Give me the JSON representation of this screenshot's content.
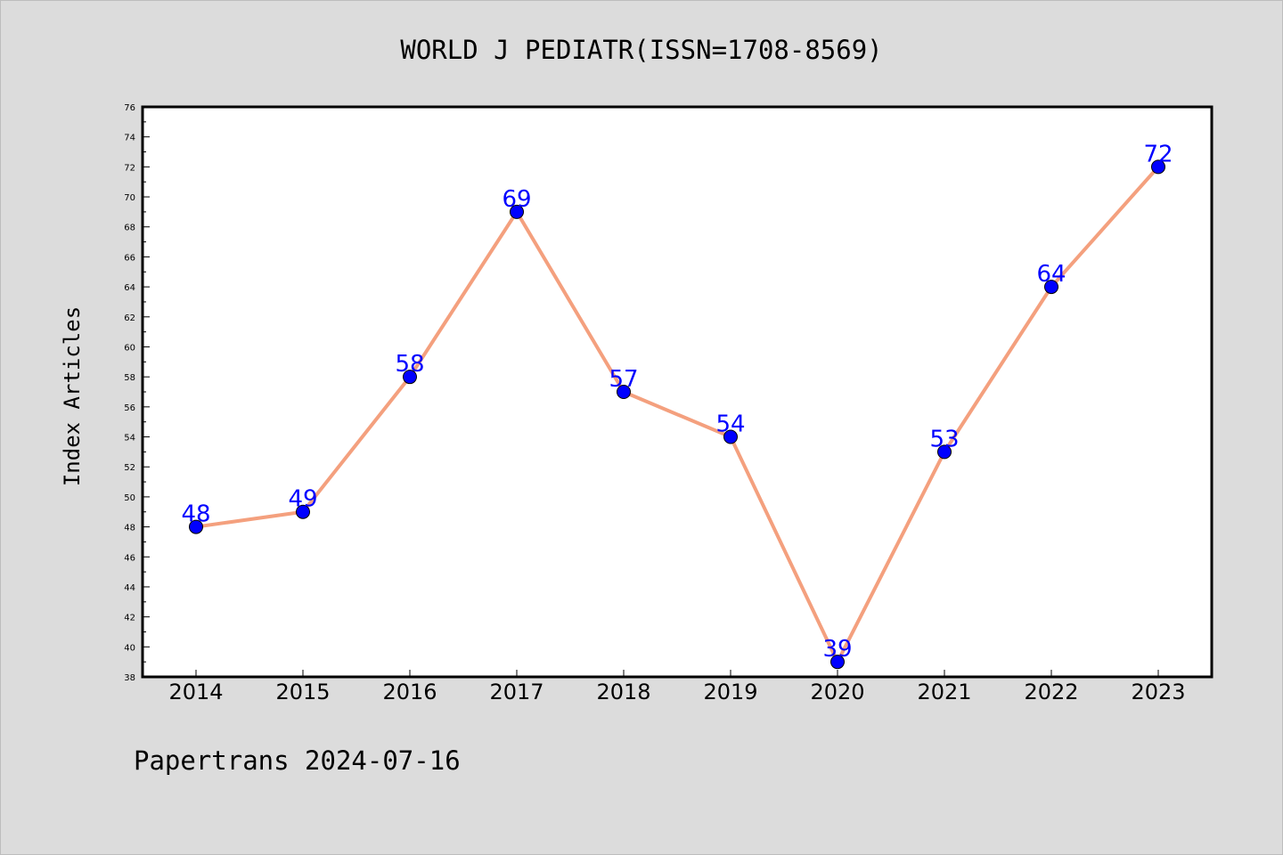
{
  "chart_data": {
    "type": "line",
    "title": "WORLD J PEDIATR(ISSN=1708-8569)",
    "xlabel": "",
    "ylabel": "Index Articles",
    "categories": [
      "2014",
      "2015",
      "2016",
      "2017",
      "2018",
      "2019",
      "2020",
      "2021",
      "2022",
      "2023"
    ],
    "series": [
      {
        "values": [
          48,
          49,
          58,
          69,
          57,
          54,
          39,
          53,
          64,
          72
        ]
      }
    ],
    "ylim": [
      38,
      76
    ],
    "ytick_step": 2,
    "grid": false,
    "line_color": "#f4a07e",
    "marker_color": "#0000ff",
    "label_color": "#0000ff",
    "footer": "Papertrans 2024-07-16"
  }
}
